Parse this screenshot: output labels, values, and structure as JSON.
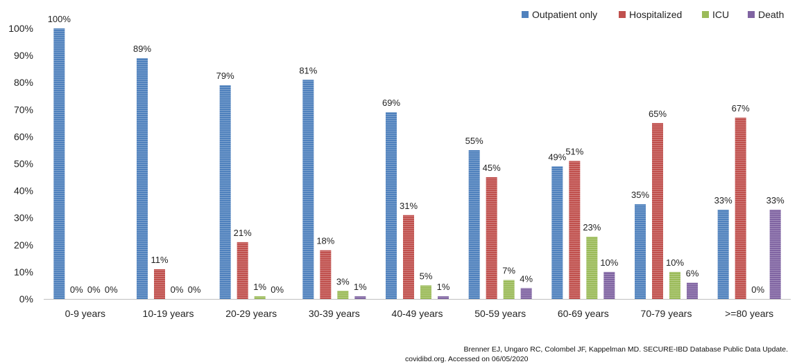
{
  "chart_data": {
    "type": "bar",
    "categories": [
      "0-9 years",
      "10-19 years",
      "20-29 years",
      "30-39 years",
      "40-49 years",
      "50-59 years",
      "60-69 years",
      "70-79 years",
      ">=80 years"
    ],
    "series": [
      {
        "name": "Outpatient only",
        "color": "#4f81bd",
        "values": [
          100,
          89,
          79,
          81,
          69,
          55,
          49,
          35,
          33
        ]
      },
      {
        "name": "Hospitalized",
        "color": "#c0504d",
        "values": [
          0,
          11,
          21,
          18,
          31,
          45,
          51,
          65,
          67
        ]
      },
      {
        "name": "ICU",
        "color": "#9bbb59",
        "values": [
          0,
          0,
          1,
          3,
          5,
          7,
          23,
          10,
          0
        ]
      },
      {
        "name": "Death",
        "color": "#8064a2",
        "values": [
          0,
          0,
          0,
          1,
          1,
          4,
          10,
          6,
          33
        ]
      }
    ],
    "data_labels": [
      [
        "100%",
        "0%",
        "0%",
        "0%"
      ],
      [
        "89%",
        "11%",
        "0%",
        "0%"
      ],
      [
        "79%",
        "21%",
        "1%",
        "0%"
      ],
      [
        "81%",
        "18%",
        "3%",
        "1%"
      ],
      [
        "69%",
        "31%",
        "5%",
        "1%"
      ],
      [
        "55%",
        "45%",
        "7%",
        "4%"
      ],
      [
        "49%",
        "51%",
        "23%",
        "10%"
      ],
      [
        "35%",
        "65%",
        "10%",
        "6%"
      ],
      [
        "33%",
        "67%",
        "0%",
        "33%"
      ]
    ],
    "y_ticks": [
      "0%",
      "10%",
      "20%",
      "30%",
      "40%",
      "50%",
      "60%",
      "70%",
      "80%",
      "90%",
      "100%"
    ],
    "ylim": [
      0,
      100
    ],
    "legend_position": "top-right",
    "grid": false,
    "title": "",
    "xlabel": "",
    "ylabel": ""
  },
  "source_note": {
    "line1": "Brenner EJ, Ungaro RC, Colombel JF, Kappelman MD. SECURE-IBD Database Public Data Update.",
    "line2": "covidibd.org. Accessed on 06/05/2020"
  }
}
